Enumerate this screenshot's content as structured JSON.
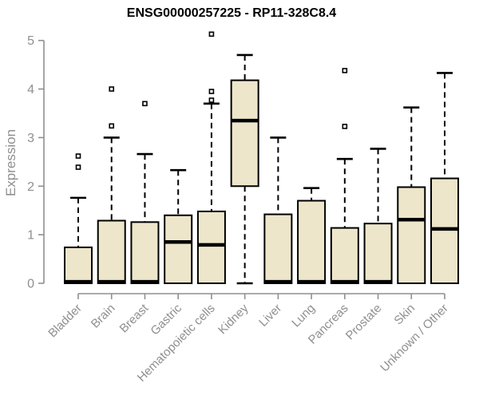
{
  "title": "ENSG00000257225 - RP11-328C8.4",
  "chart_data": {
    "type": "boxplot",
    "title": "ENSG00000257225 - RP11-328C8.4",
    "xlabel": "",
    "ylabel": "Expression",
    "ylim": [
      0,
      5
    ],
    "yticks": [
      0,
      1,
      2,
      3,
      4,
      5
    ],
    "grid": false,
    "legend": false,
    "categories": [
      "Bladder",
      "Brain",
      "Breast",
      "Gastric",
      "Hematopoietic cells",
      "Kidney",
      "Liver",
      "Lung",
      "Pancreas",
      "Prostate",
      "Skin",
      "Unknown / Other"
    ],
    "boxes": [
      {
        "category": "Bladder",
        "whisker_low": 0,
        "q1": 0,
        "median": 0.03,
        "q3": 0.74,
        "whisker_high": 1.76,
        "outliers": [
          2.39,
          2.62
        ]
      },
      {
        "category": "Brain",
        "whisker_low": 0,
        "q1": 0,
        "median": 0.03,
        "q3": 1.29,
        "whisker_high": 3.0,
        "outliers": [
          3.24,
          4.0
        ]
      },
      {
        "category": "Breast",
        "whisker_low": 0,
        "q1": 0,
        "median": 0.03,
        "q3": 1.26,
        "whisker_high": 2.66,
        "outliers": [
          3.7
        ]
      },
      {
        "category": "Gastric",
        "whisker_low": 0,
        "q1": 0,
        "median": 0.85,
        "q3": 1.4,
        "whisker_high": 2.33,
        "outliers": []
      },
      {
        "category": "Hematopoietic cells",
        "whisker_low": 0,
        "q1": 0,
        "median": 0.79,
        "q3": 1.48,
        "whisker_high": 3.7,
        "outliers": [
          3.77,
          3.95,
          5.13
        ]
      },
      {
        "category": "Kidney",
        "whisker_low": 0,
        "q1": 2.0,
        "median": 3.35,
        "q3": 4.18,
        "whisker_high": 4.7,
        "outliers": []
      },
      {
        "category": "Liver",
        "whisker_low": 0,
        "q1": 0,
        "median": 0.03,
        "q3": 1.42,
        "whisker_high": 3.0,
        "outliers": []
      },
      {
        "category": "Lung",
        "whisker_low": 0,
        "q1": 0,
        "median": 0.03,
        "q3": 1.7,
        "whisker_high": 1.96,
        "outliers": []
      },
      {
        "category": "Pancreas",
        "whisker_low": 0,
        "q1": 0,
        "median": 0.03,
        "q3": 1.14,
        "whisker_high": 2.56,
        "outliers": [
          3.23,
          4.38
        ]
      },
      {
        "category": "Prostate",
        "whisker_low": 0,
        "q1": 0,
        "median": 0.03,
        "q3": 1.23,
        "whisker_high": 2.77,
        "outliers": []
      },
      {
        "category": "Skin",
        "whisker_low": 0,
        "q1": 0,
        "median": 1.31,
        "q3": 1.98,
        "whisker_high": 3.62,
        "outliers": []
      },
      {
        "category": "Unknown / Other",
        "whisker_low": 0,
        "q1": 0,
        "median": 1.12,
        "q3": 2.16,
        "whisker_high": 4.33,
        "outliers": []
      }
    ],
    "colors": {
      "box_fill": "#EDE6CA",
      "box_border": "#000000",
      "median": "#000000",
      "whisker": "#000000",
      "outlier_stroke": "#000000",
      "outlier_fill": "#ffffff",
      "axis": "#8F8F8F",
      "title": "#000000"
    }
  }
}
